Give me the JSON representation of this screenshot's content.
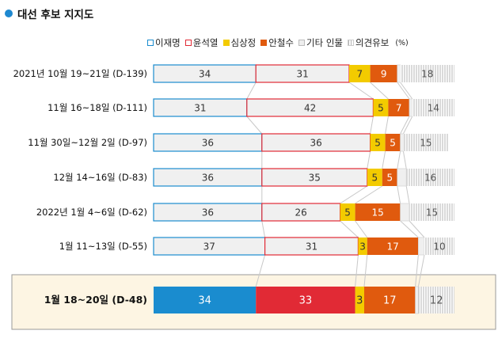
{
  "title": "대선 후보 지지도",
  "unit": "(%)",
  "colors": {
    "title_dot": "#1e88d0",
    "highlight_bg": "#fdf5e3",
    "highlight_border": "#9a9a9a"
  },
  "chart_data": {
    "type": "bar",
    "orientation": "horizontal",
    "stacked": true,
    "title": "대선 후보 지지도",
    "unit": "(%)",
    "categories": [
      "2021년 10월 19~21일 (D-139)",
      "11월 16~18일 (D-111)",
      "11월 30일~12월 2일 (D-97)",
      "12월 14~16일 (D-83)",
      "2022년 1월 4~6일 (D-62)",
      "1월 11~13일 (D-55)",
      "1월 18~20일 (D-48)"
    ],
    "highlight_index": 6,
    "series": [
      {
        "name": "이재명",
        "values": [
          34,
          31,
          36,
          36,
          36,
          37,
          34
        ],
        "color": "#1a8ccf",
        "style": "outline"
      },
      {
        "name": "윤석열",
        "values": [
          31,
          42,
          36,
          35,
          26,
          31,
          33
        ],
        "color": "#e12a35",
        "style": "outline"
      },
      {
        "name": "심상정",
        "values": [
          7,
          5,
          5,
          5,
          5,
          3,
          3
        ],
        "color": "#f3cb00",
        "style": "fill"
      },
      {
        "name": "안철수",
        "values": [
          9,
          7,
          5,
          5,
          15,
          17,
          17
        ],
        "color": "#e05a0e",
        "style": "fill"
      },
      {
        "name": "기타 인물",
        "values": [
          1,
          1,
          1,
          3,
          3,
          2,
          1
        ],
        "color": "#bbbbbb",
        "style": "light"
      },
      {
        "name": "의견유보",
        "values": [
          18,
          14,
          15,
          16,
          15,
          10,
          12
        ],
        "color": "#9a9a9a",
        "style": "hatch"
      }
    ]
  }
}
